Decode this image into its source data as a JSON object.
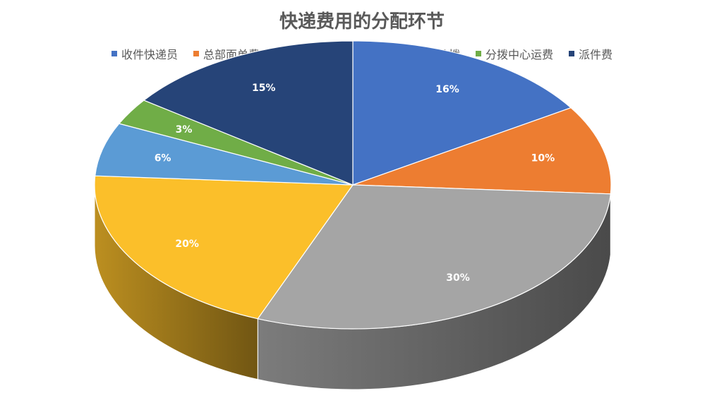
{
  "chart_data": {
    "type": "pie",
    "title": "快递费用的分配环节",
    "legend_position": "top",
    "categories": [
      "收件快递员",
      "总部面单费",
      "揽件网点",
      "中转费",
      "城市分拨",
      "分拨中心运费",
      "派件费"
    ],
    "values": [
      16,
      10,
      30,
      20,
      6,
      3,
      15
    ],
    "data_labels": [
      "16%",
      "10%",
      "30%",
      "20%",
      "6%",
      "3%",
      "15%"
    ],
    "colors": [
      "#4472C4",
      "#ED7D31",
      "#A5A5A5",
      "#FBBF2A",
      "#5B9BD5",
      "#70AD47",
      "#264478"
    ],
    "style": "3d"
  }
}
